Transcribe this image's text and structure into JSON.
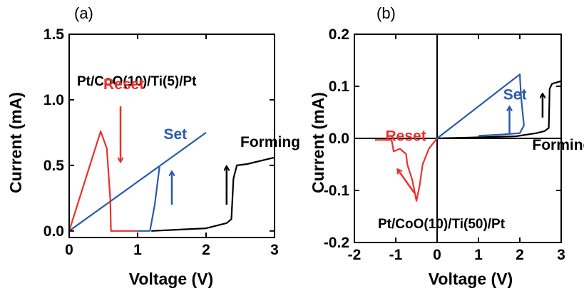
{
  "chart_data": [
    {
      "panel_label": "(a)",
      "type": "line",
      "title": "",
      "xlabel": "Voltage (V)",
      "ylabel": "Current (mA)",
      "xlim": [
        0,
        3
      ],
      "ylim": [
        -0.05,
        1.5
      ],
      "xticks": [
        "0",
        "1",
        "2",
        "3"
      ],
      "yticks": [
        "0.0",
        "0.5",
        "1.0",
        "1.5"
      ],
      "sample_label": "Pt/CoO(10)/Ti(5)/Pt",
      "grid": false,
      "annotations": [
        {
          "text": "Reset",
          "color": "#e8312e",
          "x": 0.5,
          "y": 1.08
        },
        {
          "text": "Set",
          "color": "#2a5aad",
          "x": 1.38,
          "y": 0.7
        },
        {
          "text": "Forming",
          "color": "#000000",
          "x": 2.5,
          "y": 0.64
        }
      ],
      "arrows": [
        {
          "color": "#e8312e",
          "from": [
            0.75,
            0.95
          ],
          "to": [
            0.75,
            0.53
          ]
        },
        {
          "color": "#2a5aad",
          "from": [
            1.5,
            0.2
          ],
          "to": [
            1.5,
            0.45
          ]
        },
        {
          "color": "#000000",
          "from": [
            2.3,
            0.2
          ],
          "to": [
            2.3,
            0.49
          ]
        }
      ],
      "series": [
        {
          "color": "#000000",
          "x": [
            1.2,
            2.0,
            2.3,
            2.37,
            2.4,
            2.45,
            2.6,
            3.0
          ],
          "y": [
            0.0,
            0.02,
            0.06,
            0.09,
            0.4,
            0.5,
            0.51,
            0.56
          ]
        },
        {
          "color": "#2a5aad",
          "x": [
            0.0,
            2.0
          ],
          "y": [
            0.0,
            0.75
          ]
        },
        {
          "color": "#2a5aad",
          "x": [
            1.0,
            1.18,
            1.25,
            1.32
          ],
          "y": [
            0.0,
            0.0,
            0.2,
            0.49
          ]
        },
        {
          "color": "#e8312e",
          "x": [
            0.0,
            0.46,
            0.55,
            0.6,
            0.61,
            1.0
          ],
          "y": [
            0.0,
            0.76,
            0.63,
            0.25,
            0.0,
            0.0
          ]
        }
      ]
    },
    {
      "panel_label": "(b)",
      "type": "line",
      "title": "",
      "xlabel": "Voltage (V)",
      "ylabel": "Current (mA)",
      "xlim": [
        -2,
        3
      ],
      "ylim": [
        -0.2,
        0.2
      ],
      "xticks": [
        "-2",
        "-1",
        "0",
        "1",
        "2",
        "3"
      ],
      "yticks": [
        "-0.2",
        "-0.1",
        "0.0",
        "0.1",
        "0.2"
      ],
      "sample_label": "Pt/CoO(10)/Ti(50)/Pt",
      "grid": false,
      "annotations": [
        {
          "text": "Reset",
          "color": "#e8312e",
          "x": -1.25,
          "y": -0.005
        },
        {
          "text": "Set",
          "color": "#2a5aad",
          "x": 1.6,
          "y": 0.075
        },
        {
          "text": "Forming",
          "color": "#000000",
          "x": 2.3,
          "y": -0.022
        }
      ],
      "arrows": [
        {
          "color": "#e8312e",
          "from": [
            -0.55,
            -0.105
          ],
          "to": [
            -0.95,
            -0.06
          ]
        },
        {
          "color": "#2a5aad",
          "from": [
            1.75,
            0.01
          ],
          "to": [
            1.75,
            0.06
          ]
        },
        {
          "color": "#000000",
          "from": [
            2.55,
            0.04
          ],
          "to": [
            2.55,
            0.085
          ]
        }
      ],
      "series": [
        {
          "color": "#000000",
          "x": [
            0.0,
            1.9,
            2.4,
            2.6,
            2.7,
            2.72,
            2.78,
            3.0
          ],
          "y": [
            0.0,
            0.004,
            0.01,
            0.014,
            0.02,
            0.095,
            0.105,
            0.11
          ]
        },
        {
          "color": "#2a5aad",
          "x": [
            0.0,
            2.0,
            2.03,
            2.1,
            2.0,
            1.5,
            1.0
          ],
          "y": [
            0.0,
            0.123,
            0.08,
            0.025,
            0.01,
            0.007,
            0.005
          ]
        },
        {
          "color": "#e8312e",
          "x": [
            -1.5,
            -1.1,
            -1.05,
            -0.9,
            -0.75,
            -0.72,
            -0.6,
            -0.5,
            -0.42,
            -0.35,
            -0.2,
            0.0
          ],
          "y": [
            -0.003,
            -0.003,
            -0.025,
            -0.02,
            -0.03,
            -0.05,
            -0.08,
            -0.12,
            -0.09,
            -0.05,
            -0.02,
            0.0
          ]
        }
      ]
    }
  ]
}
